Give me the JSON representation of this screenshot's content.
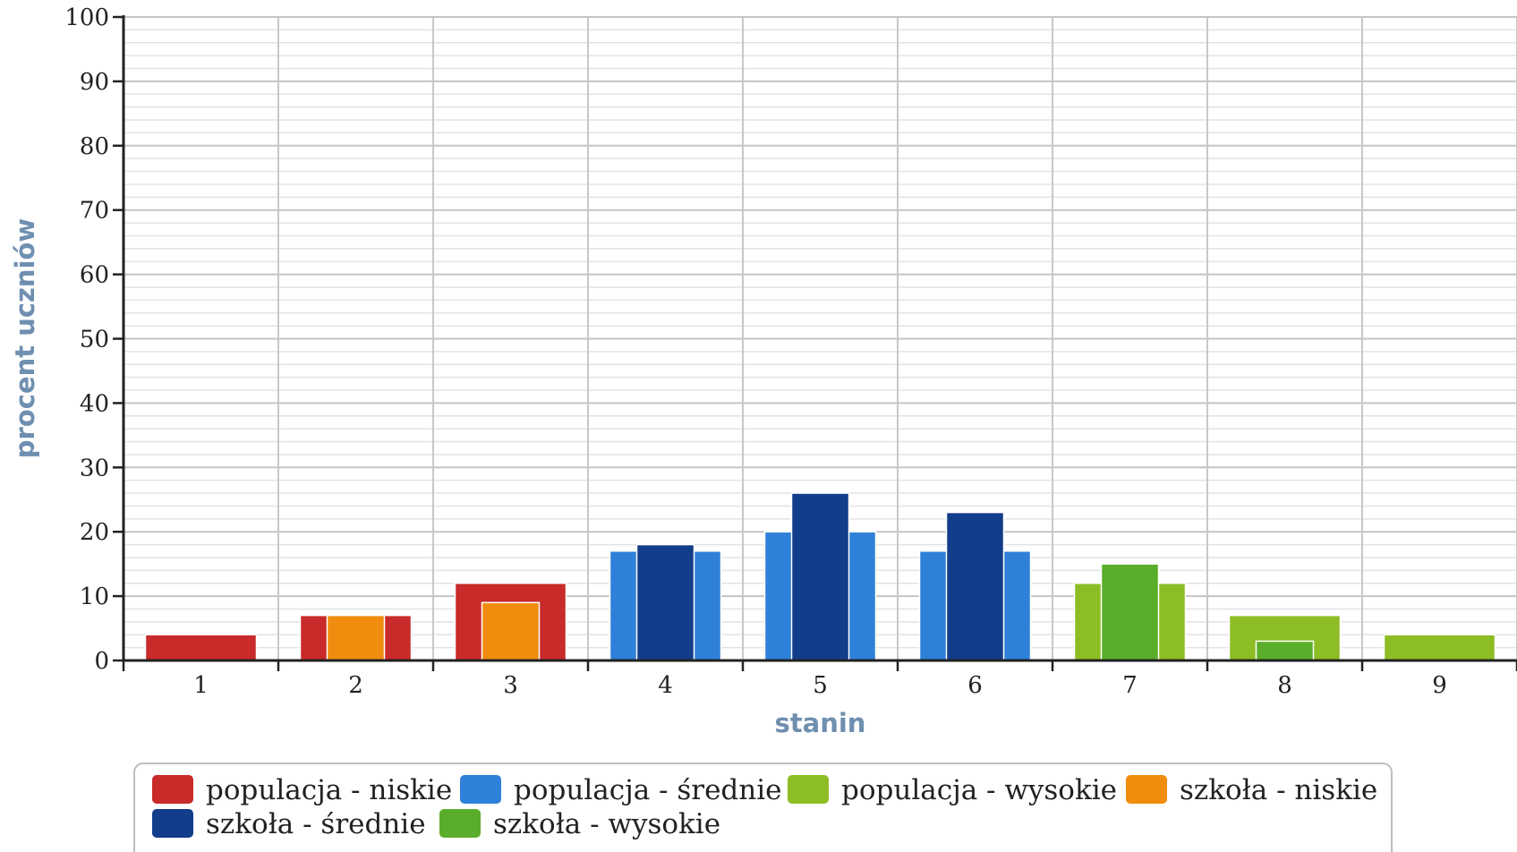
{
  "chart_data": {
    "type": "bar",
    "xlabel": "stanin",
    "ylabel": "procent uczniów",
    "ylim": [
      0,
      100
    ],
    "yticks": [
      0,
      10,
      20,
      30,
      40,
      50,
      60,
      70,
      80,
      90,
      100
    ],
    "categories": [
      "1",
      "2",
      "3",
      "4",
      "5",
      "6",
      "7",
      "8",
      "9"
    ],
    "grid": true,
    "legend_position": "bottom",
    "series": [
      {
        "name": "populacja - niskie",
        "color": "#c92a2a",
        "values": [
          4,
          7,
          12,
          null,
          null,
          null,
          null,
          null,
          null
        ]
      },
      {
        "name": "populacja - średnie",
        "color": "#2f80d8",
        "values": [
          null,
          null,
          null,
          17,
          20,
          17,
          null,
          null,
          null
        ]
      },
      {
        "name": "populacja - wysokie",
        "color": "#8dbd25",
        "values": [
          null,
          null,
          null,
          null,
          null,
          null,
          12,
          7,
          4
        ]
      },
      {
        "name": "szkoła - niskie",
        "color": "#f08c0e",
        "values": [
          0,
          7,
          9,
          null,
          null,
          null,
          null,
          null,
          null
        ]
      },
      {
        "name": "szkoła - średnie",
        "color": "#123d8a",
        "values": [
          null,
          null,
          null,
          18,
          26,
          23,
          null,
          null,
          null
        ]
      },
      {
        "name": "szkoła - wysokie",
        "color": "#5aad2b",
        "values": [
          null,
          null,
          null,
          null,
          null,
          null,
          15,
          3,
          0
        ]
      }
    ]
  }
}
